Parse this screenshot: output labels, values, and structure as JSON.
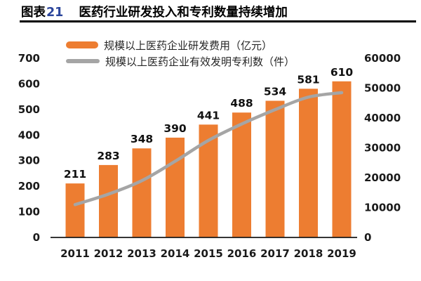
{
  "header": {
    "figure_label": "图表",
    "figure_number": "21",
    "title": "医药行业研发投入和专利数量持续增加"
  },
  "colors": {
    "bar": "#ED7D31",
    "line": "#A5A5A5",
    "axis_line": "#1a1a1a",
    "text": "#1a1a1a",
    "figure_number": "#2B459B",
    "underline": "#000000"
  },
  "legend": [
    {
      "label": "规模以上医药企业研发费用（亿元）",
      "marker": "bar",
      "color": "#ED7D31"
    },
    {
      "label": "规模以上医药企业有效发明专利数（件）",
      "marker": "line",
      "color": "#A5A5A5"
    }
  ],
  "chart_data": {
    "type": "bar",
    "subtype": "bar+line combo, dual axis",
    "categories": [
      "2011",
      "2012",
      "2013",
      "2014",
      "2015",
      "2016",
      "2017",
      "2018",
      "2019"
    ],
    "series": [
      {
        "name": "规模以上医药企业研发费用（亿元）",
        "type": "bar",
        "axis": "left",
        "color": "#ED7D31",
        "values": [
          211,
          283,
          348,
          390,
          441,
          488,
          534,
          581,
          610
        ],
        "data_labels": true
      },
      {
        "name": "规模以上医药企业有效发明专利数（件）",
        "type": "line",
        "axis": "right",
        "color": "#A5A5A5",
        "smooth": true,
        "values": [
          11000,
          14500,
          19000,
          25500,
          32500,
          38000,
          42800,
          47000,
          48500
        ],
        "data_labels": false
      }
    ],
    "left_axis": {
      "min": 0,
      "max": 700,
      "step": 100,
      "ticks": [
        0,
        100,
        200,
        300,
        400,
        500,
        600,
        700
      ]
    },
    "right_axis": {
      "min": 0,
      "max": 60000,
      "step": 10000,
      "ticks": [
        0,
        10000,
        20000,
        30000,
        40000,
        50000,
        60000
      ]
    },
    "grid": false,
    "legend_position": "top"
  }
}
